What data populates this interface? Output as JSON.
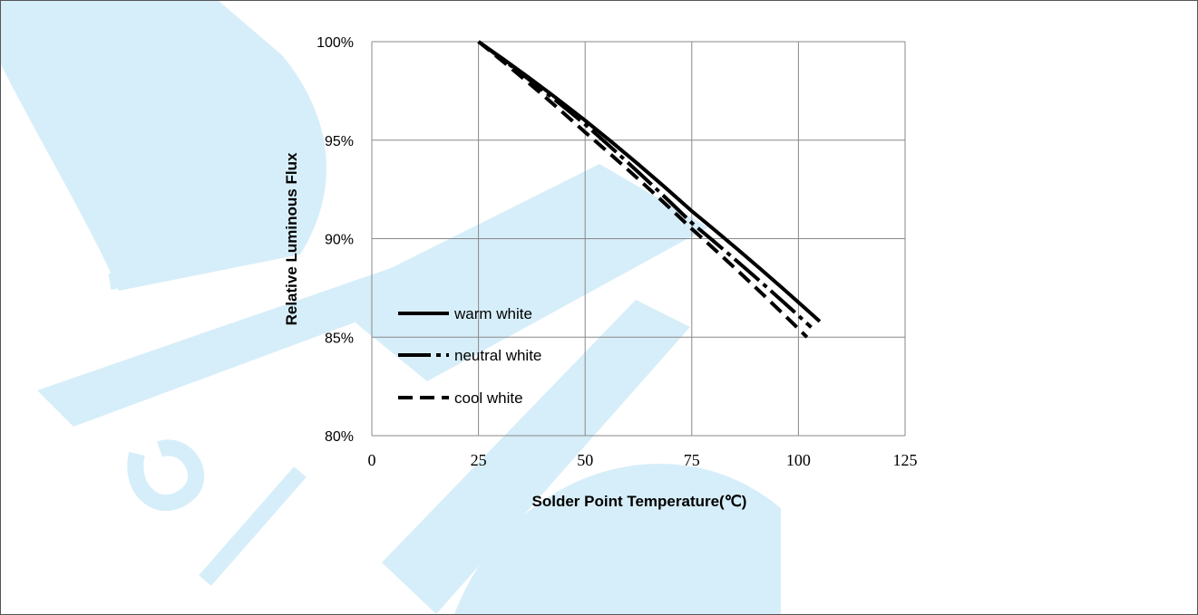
{
  "chart_data": {
    "type": "line",
    "title": "",
    "xlabel": "Solder Point Temperature(℃)",
    "ylabel": "Relative Luminous Flux",
    "xlim": [
      0,
      125
    ],
    "ylim": [
      80,
      100
    ],
    "x_ticks": [
      "0",
      "25",
      "50",
      "75",
      "100",
      "125"
    ],
    "y_ticks": [
      "80%",
      "85%",
      "90%",
      "95%",
      "100%"
    ],
    "grid": true,
    "legend_position": "lower-left",
    "series": [
      {
        "name": "warm white",
        "style": "solid",
        "x": [
          25,
          50,
          75,
          105
        ],
        "y": [
          100,
          96.0,
          91.4,
          85.8
        ]
      },
      {
        "name": "neutral white",
        "style": "long-dash-dot",
        "x": [
          25,
          50,
          75,
          103
        ],
        "y": [
          100,
          95.8,
          90.8,
          85.5
        ]
      },
      {
        "name": "cool white",
        "style": "dashed",
        "x": [
          25,
          50,
          75,
          102
        ],
        "y": [
          100,
          95.4,
          90.5,
          85.0
        ]
      }
    ]
  },
  "colors": {
    "line": "#000000",
    "grid": "#888888",
    "watermark": "#d6eef9"
  }
}
